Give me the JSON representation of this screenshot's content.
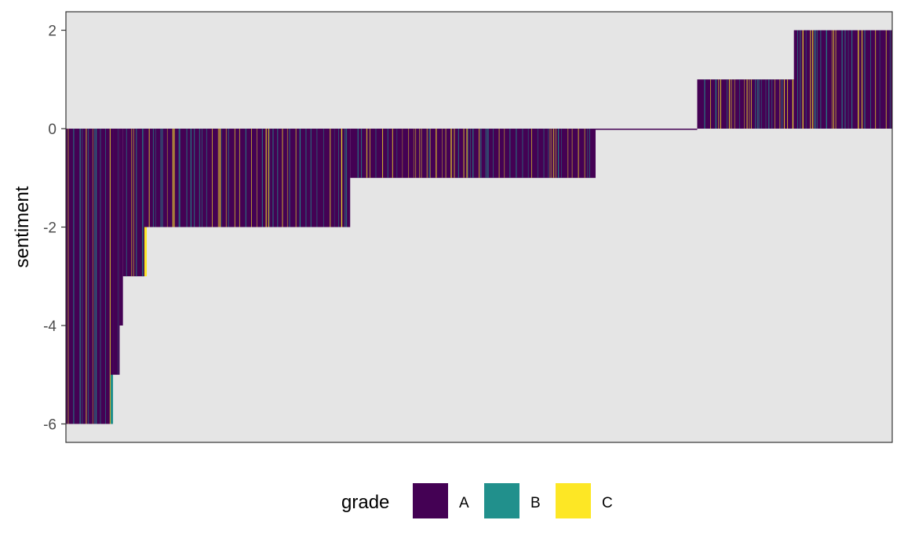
{
  "chart_data": {
    "type": "bar",
    "xlabel": "",
    "ylabel": "sentiment",
    "ylim": [
      -6.375,
      2.375
    ],
    "yticks": [
      -6,
      -4,
      -2,
      0,
      2
    ],
    "ytick_labels": [
      "-6",
      "-4",
      "-2",
      "0",
      "2"
    ],
    "x_ticks_shown": false,
    "grid": false,
    "legend_position": "bottom",
    "legend": {
      "title": "grade",
      "entries": [
        {
          "label": "A",
          "color": "#440154"
        },
        {
          "label": "B",
          "color": "#21908C"
        },
        {
          "label": "C",
          "color": "#FDE725"
        }
      ]
    },
    "panel_background": "#E5E5E5",
    "bar_groups": [
      {
        "sentiment": -6,
        "fraction_of_bars": 0.057,
        "dominant_grade": "A",
        "minor_grades": [
          "B",
          "C"
        ]
      },
      {
        "sentiment": -5,
        "fraction_of_bars": 0.008,
        "dominant_grade": "A",
        "minor_grades": [
          "B"
        ]
      },
      {
        "sentiment": -4,
        "fraction_of_bars": 0.004,
        "dominant_grade": "A",
        "minor_grades": []
      },
      {
        "sentiment": -3,
        "fraction_of_bars": 0.026,
        "dominant_grade": "A",
        "minor_grades": [
          "B",
          "C"
        ]
      },
      {
        "sentiment": -2,
        "fraction_of_bars": 0.249,
        "dominant_grade": "A",
        "minor_grades": [
          "B",
          "C"
        ]
      },
      {
        "sentiment": -1,
        "fraction_of_bars": 0.297,
        "dominant_grade": "A",
        "minor_grades": [
          "B",
          "C"
        ]
      },
      {
        "sentiment": 0,
        "fraction_of_bars": 0.123,
        "dominant_grade": "A",
        "minor_grades": [
          "B",
          "C"
        ]
      },
      {
        "sentiment": 1,
        "fraction_of_bars": 0.117,
        "dominant_grade": "A",
        "minor_grades": [
          "B",
          "C"
        ]
      },
      {
        "sentiment": 2,
        "fraction_of_bars": 0.119,
        "dominant_grade": "A",
        "minor_grades": [
          "B",
          "C"
        ]
      }
    ]
  }
}
